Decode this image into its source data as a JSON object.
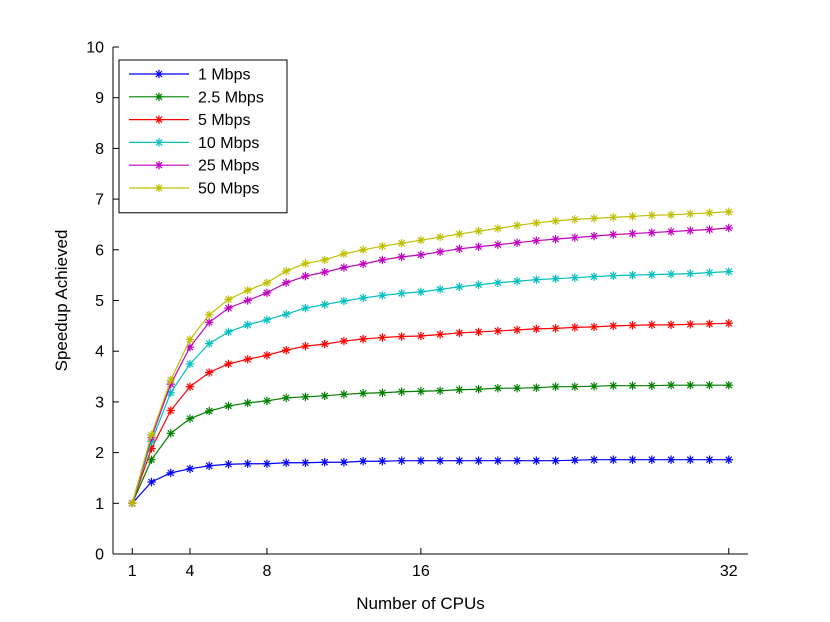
{
  "chart_data": {
    "type": "line",
    "xlabel": "Number of CPUs",
    "ylabel": "Speedup Achieved",
    "xlim": [
      0,
      33
    ],
    "ylim": [
      0,
      10
    ],
    "x_ticks": [
      1,
      4,
      8,
      16,
      32
    ],
    "y_ticks": [
      0,
      1,
      2,
      3,
      4,
      5,
      6,
      7,
      8,
      9,
      10
    ],
    "grid": false,
    "legend_position": "top-left",
    "marker": "asterisk",
    "x": [
      1,
      2,
      3,
      4,
      5,
      6,
      7,
      8,
      9,
      10,
      11,
      12,
      13,
      14,
      15,
      16,
      17,
      18,
      19,
      20,
      21,
      22,
      23,
      24,
      25,
      26,
      27,
      28,
      29,
      30,
      31,
      32
    ],
    "series": [
      {
        "name": "1 Mbps",
        "color": "#0000ff",
        "values": [
          1.0,
          1.42,
          1.6,
          1.68,
          1.74,
          1.77,
          1.78,
          1.78,
          1.8,
          1.8,
          1.81,
          1.81,
          1.83,
          1.83,
          1.84,
          1.84,
          1.84,
          1.84,
          1.84,
          1.84,
          1.84,
          1.84,
          1.84,
          1.85,
          1.86,
          1.86,
          1.86,
          1.86,
          1.86,
          1.86,
          1.86,
          1.86
        ]
      },
      {
        "name": "2.5 Mbps",
        "color": "#008000",
        "values": [
          1.0,
          1.86,
          2.38,
          2.67,
          2.82,
          2.92,
          2.98,
          3.02,
          3.08,
          3.1,
          3.12,
          3.15,
          3.17,
          3.18,
          3.2,
          3.21,
          3.22,
          3.24,
          3.25,
          3.27,
          3.27,
          3.28,
          3.3,
          3.3,
          3.31,
          3.32,
          3.32,
          3.32,
          3.33,
          3.33,
          3.33,
          3.33
        ]
      },
      {
        "name": "5 Mbps",
        "color": "#ff0000",
        "values": [
          1.0,
          2.08,
          2.83,
          3.3,
          3.58,
          3.75,
          3.84,
          3.92,
          4.02,
          4.1,
          4.14,
          4.2,
          4.24,
          4.27,
          4.29,
          4.3,
          4.33,
          4.36,
          4.38,
          4.4,
          4.42,
          4.44,
          4.45,
          4.47,
          4.48,
          4.5,
          4.51,
          4.52,
          4.52,
          4.53,
          4.54,
          4.55
        ]
      },
      {
        "name": "10 Mbps",
        "color": "#00bfbf",
        "values": [
          1.0,
          2.22,
          3.18,
          3.75,
          4.15,
          4.38,
          4.52,
          4.62,
          4.73,
          4.85,
          4.92,
          4.99,
          5.05,
          5.1,
          5.14,
          5.17,
          5.22,
          5.27,
          5.31,
          5.35,
          5.38,
          5.41,
          5.43,
          5.45,
          5.47,
          5.49,
          5.5,
          5.51,
          5.52,
          5.53,
          5.55,
          5.57
        ]
      },
      {
        "name": "25 Mbps",
        "color": "#bf00bf",
        "values": [
          1.0,
          2.3,
          3.35,
          4.08,
          4.57,
          4.85,
          5.0,
          5.15,
          5.35,
          5.48,
          5.56,
          5.65,
          5.72,
          5.8,
          5.86,
          5.9,
          5.96,
          6.02,
          6.06,
          6.1,
          6.14,
          6.18,
          6.21,
          6.24,
          6.27,
          6.3,
          6.32,
          6.34,
          6.36,
          6.38,
          6.4,
          6.43
        ]
      },
      {
        "name": "50 Mbps",
        "color": "#bfbf00",
        "values": [
          1.0,
          2.35,
          3.43,
          4.23,
          4.72,
          5.02,
          5.2,
          5.35,
          5.58,
          5.73,
          5.8,
          5.92,
          6.0,
          6.07,
          6.13,
          6.19,
          6.25,
          6.31,
          6.37,
          6.42,
          6.48,
          6.53,
          6.57,
          6.6,
          6.62,
          6.64,
          6.66,
          6.68,
          6.69,
          6.71,
          6.73,
          6.75
        ]
      }
    ]
  }
}
